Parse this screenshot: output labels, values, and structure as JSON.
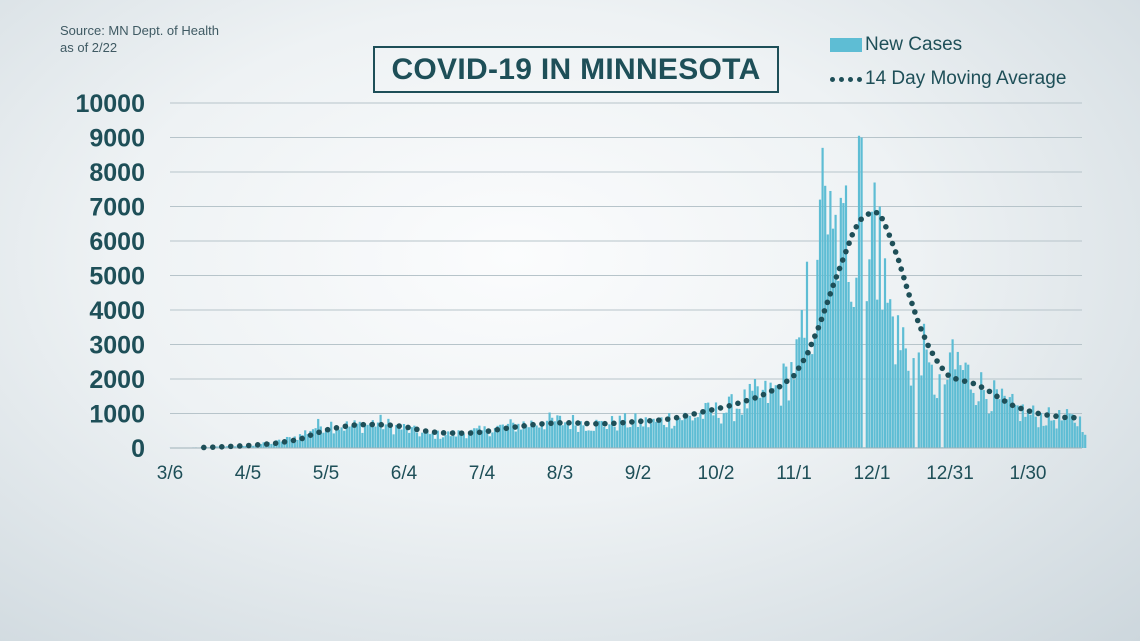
{
  "source": {
    "line1": "Source: MN Dept. of Health",
    "line2": "as of 2/22"
  },
  "colors": {
    "bar": "#5ebdd4",
    "dot": "#1e4f58",
    "text": "#1e4f58",
    "grid": "#b7c4ca"
  },
  "chart_data": {
    "type": "bar",
    "title": "COVID-19 IN MINNESOTA",
    "xlabel": "",
    "ylabel": "",
    "ylim": [
      0,
      10000
    ],
    "y_ticks": [
      0,
      1000,
      2000,
      3000,
      4000,
      5000,
      6000,
      7000,
      8000,
      9000,
      10000
    ],
    "x_tick_labels": [
      "3/6",
      "4/5",
      "5/5",
      "6/4",
      "7/4",
      "8/3",
      "9/2",
      "10/2",
      "11/1",
      "12/1",
      "12/31",
      "1/30"
    ],
    "x_tick_days": [
      0,
      30,
      60,
      90,
      120,
      150,
      180,
      210,
      240,
      270,
      300,
      330
    ],
    "day_range": [
      0,
      352
    ],
    "grid": true,
    "legend_position": "top-right",
    "series": [
      {
        "name": "New Cases",
        "type": "bar",
        "anchors": [
          [
            0,
            2
          ],
          [
            10,
            15
          ],
          [
            20,
            40
          ],
          [
            30,
            70
          ],
          [
            40,
            160
          ],
          [
            50,
            360
          ],
          [
            55,
            600
          ],
          [
            60,
            720
          ],
          [
            65,
            650
          ],
          [
            70,
            640
          ],
          [
            75,
            700
          ],
          [
            80,
            760
          ],
          [
            85,
            640
          ],
          [
            90,
            580
          ],
          [
            95,
            460
          ],
          [
            100,
            390
          ],
          [
            105,
            390
          ],
          [
            110,
            420
          ],
          [
            115,
            460
          ],
          [
            120,
            490
          ],
          [
            125,
            580
          ],
          [
            130,
            640
          ],
          [
            135,
            690
          ],
          [
            140,
            720
          ],
          [
            145,
            780
          ],
          [
            150,
            780
          ],
          [
            155,
            760
          ],
          [
            160,
            720
          ],
          [
            165,
            690
          ],
          [
            170,
            720
          ],
          [
            175,
            760
          ],
          [
            180,
            760
          ],
          [
            185,
            720
          ],
          [
            190,
            820
          ],
          [
            195,
            920
          ],
          [
            200,
            900
          ],
          [
            205,
            1000
          ],
          [
            210,
            1050
          ],
          [
            215,
            1150
          ],
          [
            220,
            1300
          ],
          [
            225,
            1500
          ],
          [
            230,
            1550
          ],
          [
            235,
            1800
          ],
          [
            240,
            2400
          ],
          [
            245,
            3400
          ],
          [
            250,
            4500
          ],
          [
            253,
            5000
          ],
          [
            256,
            6000
          ],
          [
            258,
            6700
          ],
          [
            260,
            6500
          ],
          [
            262,
            5800
          ],
          [
            264,
            6200
          ],
          [
            266,
            6900
          ],
          [
            268,
            6400
          ],
          [
            270,
            6400
          ],
          [
            272,
            5700
          ],
          [
            274,
            5000
          ],
          [
            276,
            4300
          ],
          [
            278,
            3700
          ],
          [
            280,
            3200
          ],
          [
            283,
            2700
          ],
          [
            286,
            2500
          ],
          [
            290,
            2200
          ],
          [
            295,
            1900
          ],
          [
            300,
            2100
          ],
          [
            303,
            2500
          ],
          [
            306,
            2200
          ],
          [
            310,
            1900
          ],
          [
            315,
            1600
          ],
          [
            320,
            1300
          ],
          [
            325,
            1150
          ],
          [
            330,
            1000
          ],
          [
            335,
            920
          ],
          [
            340,
            860
          ],
          [
            345,
            850
          ],
          [
            350,
            800
          ],
          [
            352,
            600
          ]
        ],
        "spikes": [
          [
            243,
            4000
          ],
          [
            245,
            5400
          ],
          [
            250,
            7200
          ],
          [
            251,
            8700
          ],
          [
            252,
            7600
          ],
          [
            254,
            7450
          ],
          [
            258,
            7250
          ],
          [
            259,
            7100
          ],
          [
            265,
            9050
          ],
          [
            266,
            9000
          ],
          [
            273,
            7000
          ],
          [
            282,
            3500
          ],
          [
            301,
            3150
          ],
          [
            290,
            3600
          ]
        ],
        "zeros": [
          267,
          287,
          297
        ]
      },
      {
        "name": "14 Day Moving Average",
        "type": "dotted-line",
        "points": [
          [
            13,
            15
          ],
          [
            20,
            35
          ],
          [
            30,
            70
          ],
          [
            40,
            130
          ],
          [
            50,
            250
          ],
          [
            55,
            400
          ],
          [
            60,
            520
          ],
          [
            65,
            600
          ],
          [
            70,
            660
          ],
          [
            75,
            680
          ],
          [
            80,
            680
          ],
          [
            85,
            660
          ],
          [
            90,
            620
          ],
          [
            95,
            540
          ],
          [
            100,
            470
          ],
          [
            105,
            440
          ],
          [
            110,
            430
          ],
          [
            115,
            430
          ],
          [
            120,
            460
          ],
          [
            125,
            520
          ],
          [
            130,
            580
          ],
          [
            135,
            630
          ],
          [
            140,
            680
          ],
          [
            145,
            710
          ],
          [
            150,
            730
          ],
          [
            155,
            730
          ],
          [
            160,
            710
          ],
          [
            165,
            700
          ],
          [
            170,
            710
          ],
          [
            175,
            740
          ],
          [
            180,
            770
          ],
          [
            185,
            790
          ],
          [
            190,
            820
          ],
          [
            195,
            880
          ],
          [
            200,
            960
          ],
          [
            205,
            1050
          ],
          [
            210,
            1130
          ],
          [
            215,
            1220
          ],
          [
            220,
            1330
          ],
          [
            225,
            1450
          ],
          [
            230,
            1600
          ],
          [
            235,
            1800
          ],
          [
            240,
            2100
          ],
          [
            245,
            2700
          ],
          [
            250,
            3600
          ],
          [
            255,
            4700
          ],
          [
            260,
            5700
          ],
          [
            263,
            6300
          ],
          [
            266,
            6650
          ],
          [
            270,
            6850
          ],
          [
            273,
            6800
          ],
          [
            276,
            6300
          ],
          [
            280,
            5500
          ],
          [
            284,
            4500
          ],
          [
            288,
            3600
          ],
          [
            292,
            2900
          ],
          [
            296,
            2400
          ],
          [
            300,
            2050
          ],
          [
            305,
            1950
          ],
          [
            310,
            1850
          ],
          [
            315,
            1650
          ],
          [
            320,
            1400
          ],
          [
            325,
            1200
          ],
          [
            330,
            1080
          ],
          [
            335,
            980
          ],
          [
            340,
            930
          ],
          [
            345,
            880
          ],
          [
            349,
            880
          ]
        ]
      }
    ]
  }
}
